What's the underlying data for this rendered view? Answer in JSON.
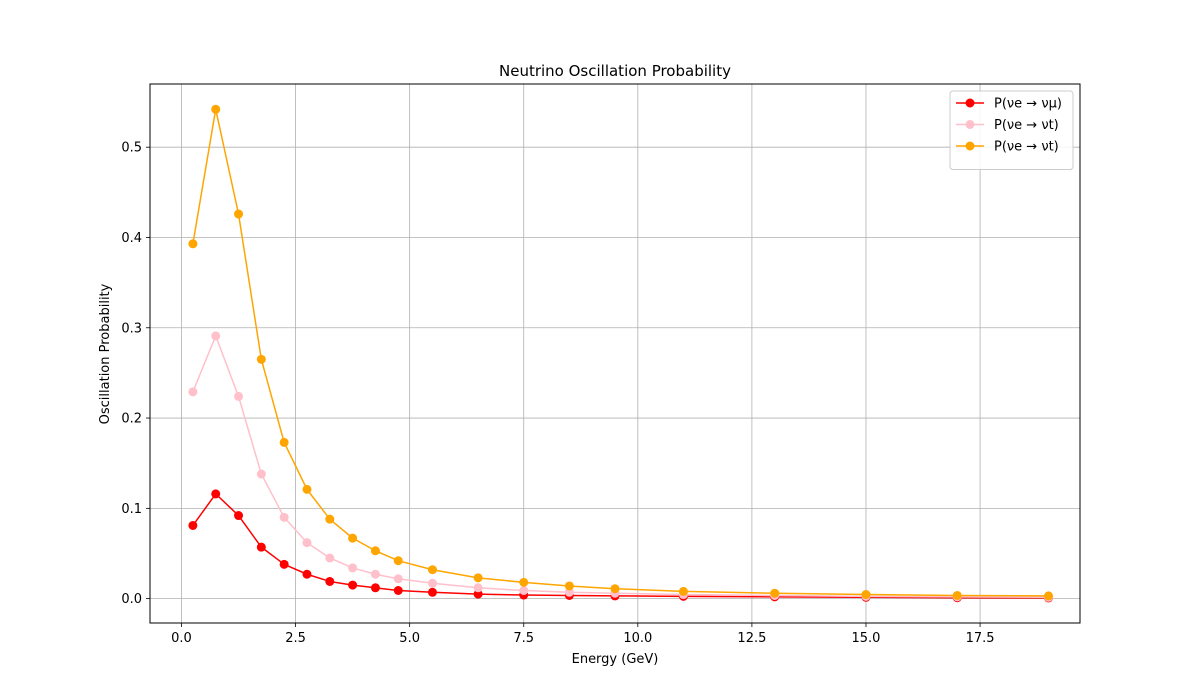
{
  "chart_data": {
    "type": "line",
    "title": "Neutrino Oscillation Probability",
    "xlabel": "Energy (GeV)",
    "ylabel": "Oscillation Probability",
    "xlim": [
      -0.69,
      19.69
    ],
    "ylim": [
      -0.027,
      0.57
    ],
    "xticks": [
      0.0,
      2.5,
      5.0,
      7.5,
      10.0,
      12.5,
      15.0,
      17.5
    ],
    "xtick_labels": [
      "0.0",
      "2.5",
      "5.0",
      "7.5",
      "10.0",
      "12.5",
      "15.0",
      "17.5"
    ],
    "yticks": [
      0.0,
      0.1,
      0.2,
      0.3,
      0.4,
      0.5
    ],
    "ytick_labels": [
      "0.0",
      "0.1",
      "0.2",
      "0.3",
      "0.4",
      "0.5"
    ],
    "grid": true,
    "legend_position": "top-right",
    "x": [
      0.25,
      0.75,
      1.25,
      1.75,
      2.25,
      2.75,
      3.25,
      3.75,
      4.25,
      4.75,
      5.5,
      6.5,
      7.5,
      8.5,
      9.5,
      11.0,
      13.0,
      15.0,
      17.0,
      19.0
    ],
    "series": [
      {
        "name": "P(νe → νμ)",
        "color": "#ff0000",
        "values": [
          0.081,
          0.116,
          0.092,
          0.057,
          0.038,
          0.027,
          0.019,
          0.015,
          0.012,
          0.009,
          0.007,
          0.005,
          0.004,
          0.0035,
          0.003,
          0.0025,
          0.002,
          0.0015,
          0.001,
          0.0008
        ]
      },
      {
        "name": "P(νe → νt)",
        "color": "#ffc0cb",
        "values": [
          0.229,
          0.291,
          0.224,
          0.138,
          0.09,
          0.062,
          0.045,
          0.034,
          0.027,
          0.022,
          0.017,
          0.012,
          0.009,
          0.007,
          0.006,
          0.0045,
          0.0035,
          0.0025,
          0.002,
          0.0015
        ]
      },
      {
        "name": "P(νe → νt)",
        "color": "#ffa500",
        "values": [
          0.393,
          0.542,
          0.426,
          0.265,
          0.173,
          0.121,
          0.088,
          0.067,
          0.053,
          0.042,
          0.032,
          0.023,
          0.018,
          0.014,
          0.011,
          0.008,
          0.006,
          0.0045,
          0.0035,
          0.003
        ]
      }
    ]
  }
}
